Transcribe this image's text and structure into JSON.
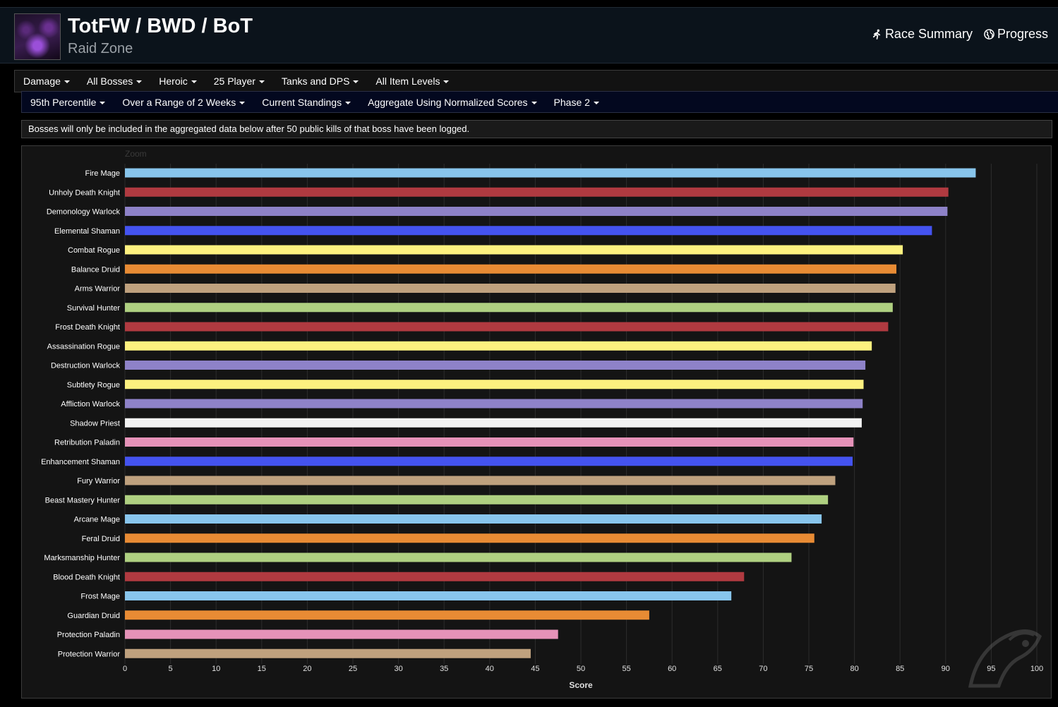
{
  "header": {
    "title": "TotFW / BWD / BoT",
    "subtitle": "Raid Zone",
    "links": [
      {
        "label": "Race Summary",
        "icon": "running-icon"
      },
      {
        "label": "Progress",
        "icon": "globe-icon"
      }
    ]
  },
  "filters_row1": [
    "Damage",
    "All Bosses",
    "Heroic",
    "25 Player",
    "Tanks and DPS",
    "All Item Levels"
  ],
  "filters_row2": [
    "95th Percentile",
    "Over a Range of 2 Weeks",
    "Current Standings",
    "Aggregate Using Normalized Scores",
    "Phase 2"
  ],
  "notice": "Bosses will only be included in the aggregated data below after 50 public kills of that boss have been logged.",
  "chart_data": {
    "type": "bar",
    "orientation": "horizontal",
    "zoom_label": "Zoom",
    "xlabel": "Score",
    "xlim": [
      0,
      100
    ],
    "xticks": [
      0,
      5,
      10,
      15,
      20,
      25,
      30,
      35,
      40,
      45,
      50,
      55,
      60,
      65,
      70,
      75,
      80,
      85,
      90,
      95,
      100
    ],
    "grid": true,
    "categories": [
      "Fire Mage",
      "Unholy Death Knight",
      "Demonology Warlock",
      "Elemental Shaman",
      "Combat Rogue",
      "Balance Druid",
      "Arms Warrior",
      "Survival Hunter",
      "Frost Death Knight",
      "Assassination Rogue",
      "Destruction Warlock",
      "Subtlety Rogue",
      "Affliction Warlock",
      "Shadow Priest",
      "Retribution Paladin",
      "Enhancement Shaman",
      "Fury Warrior",
      "Beast Mastery Hunter",
      "Arcane Mage",
      "Feral Druid",
      "Marksmanship Hunter",
      "Blood Death Knight",
      "Frost Mage",
      "Guardian Druid",
      "Protection Paladin",
      "Protection Warrior"
    ],
    "values": [
      93.3,
      90.3,
      90.2,
      88.5,
      85.3,
      84.6,
      84.5,
      84.2,
      83.7,
      81.9,
      81.2,
      81.0,
      80.9,
      80.8,
      79.9,
      79.8,
      77.9,
      77.1,
      76.4,
      75.6,
      73.1,
      67.9,
      66.5,
      57.5,
      47.5,
      44.5
    ],
    "colors": [
      "#88c5ec",
      "#b03a40",
      "#8e82c8",
      "#4453f0",
      "#fdf17f",
      "#e88b34",
      "#bfa17e",
      "#afd081",
      "#b03a40",
      "#fdf17f",
      "#8e82c8",
      "#fdf17f",
      "#8e82c8",
      "#f2f2f2",
      "#e592b8",
      "#4453f0",
      "#bfa17e",
      "#afd081",
      "#88c5ec",
      "#e88b34",
      "#afd081",
      "#b03a40",
      "#88c5ec",
      "#e88b34",
      "#e592b8",
      "#bfa17e"
    ]
  }
}
